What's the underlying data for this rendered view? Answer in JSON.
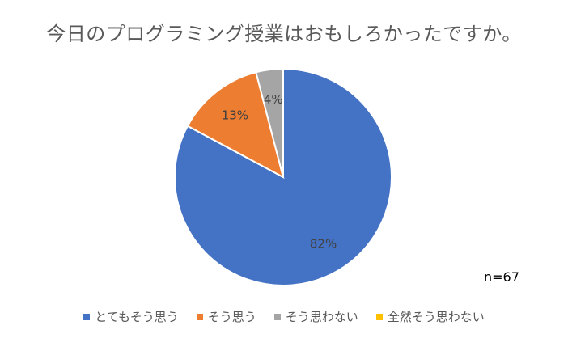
{
  "chart_data": {
    "type": "pie",
    "title": "今日のプログラミング授業はおもしろかったですか。",
    "categories": [
      "とてもそう思う",
      "そう思う",
      "そう思わない",
      "全然そう思わない"
    ],
    "values": [
      82,
      13,
      4,
      0
    ],
    "value_labels": [
      "82%",
      "13%",
      "4%",
      ""
    ],
    "colors": [
      "#4472C4",
      "#ED7D31",
      "#A5A5A5",
      "#FFC000"
    ],
    "legend_position": "bottom",
    "annotation": "n=67"
  }
}
